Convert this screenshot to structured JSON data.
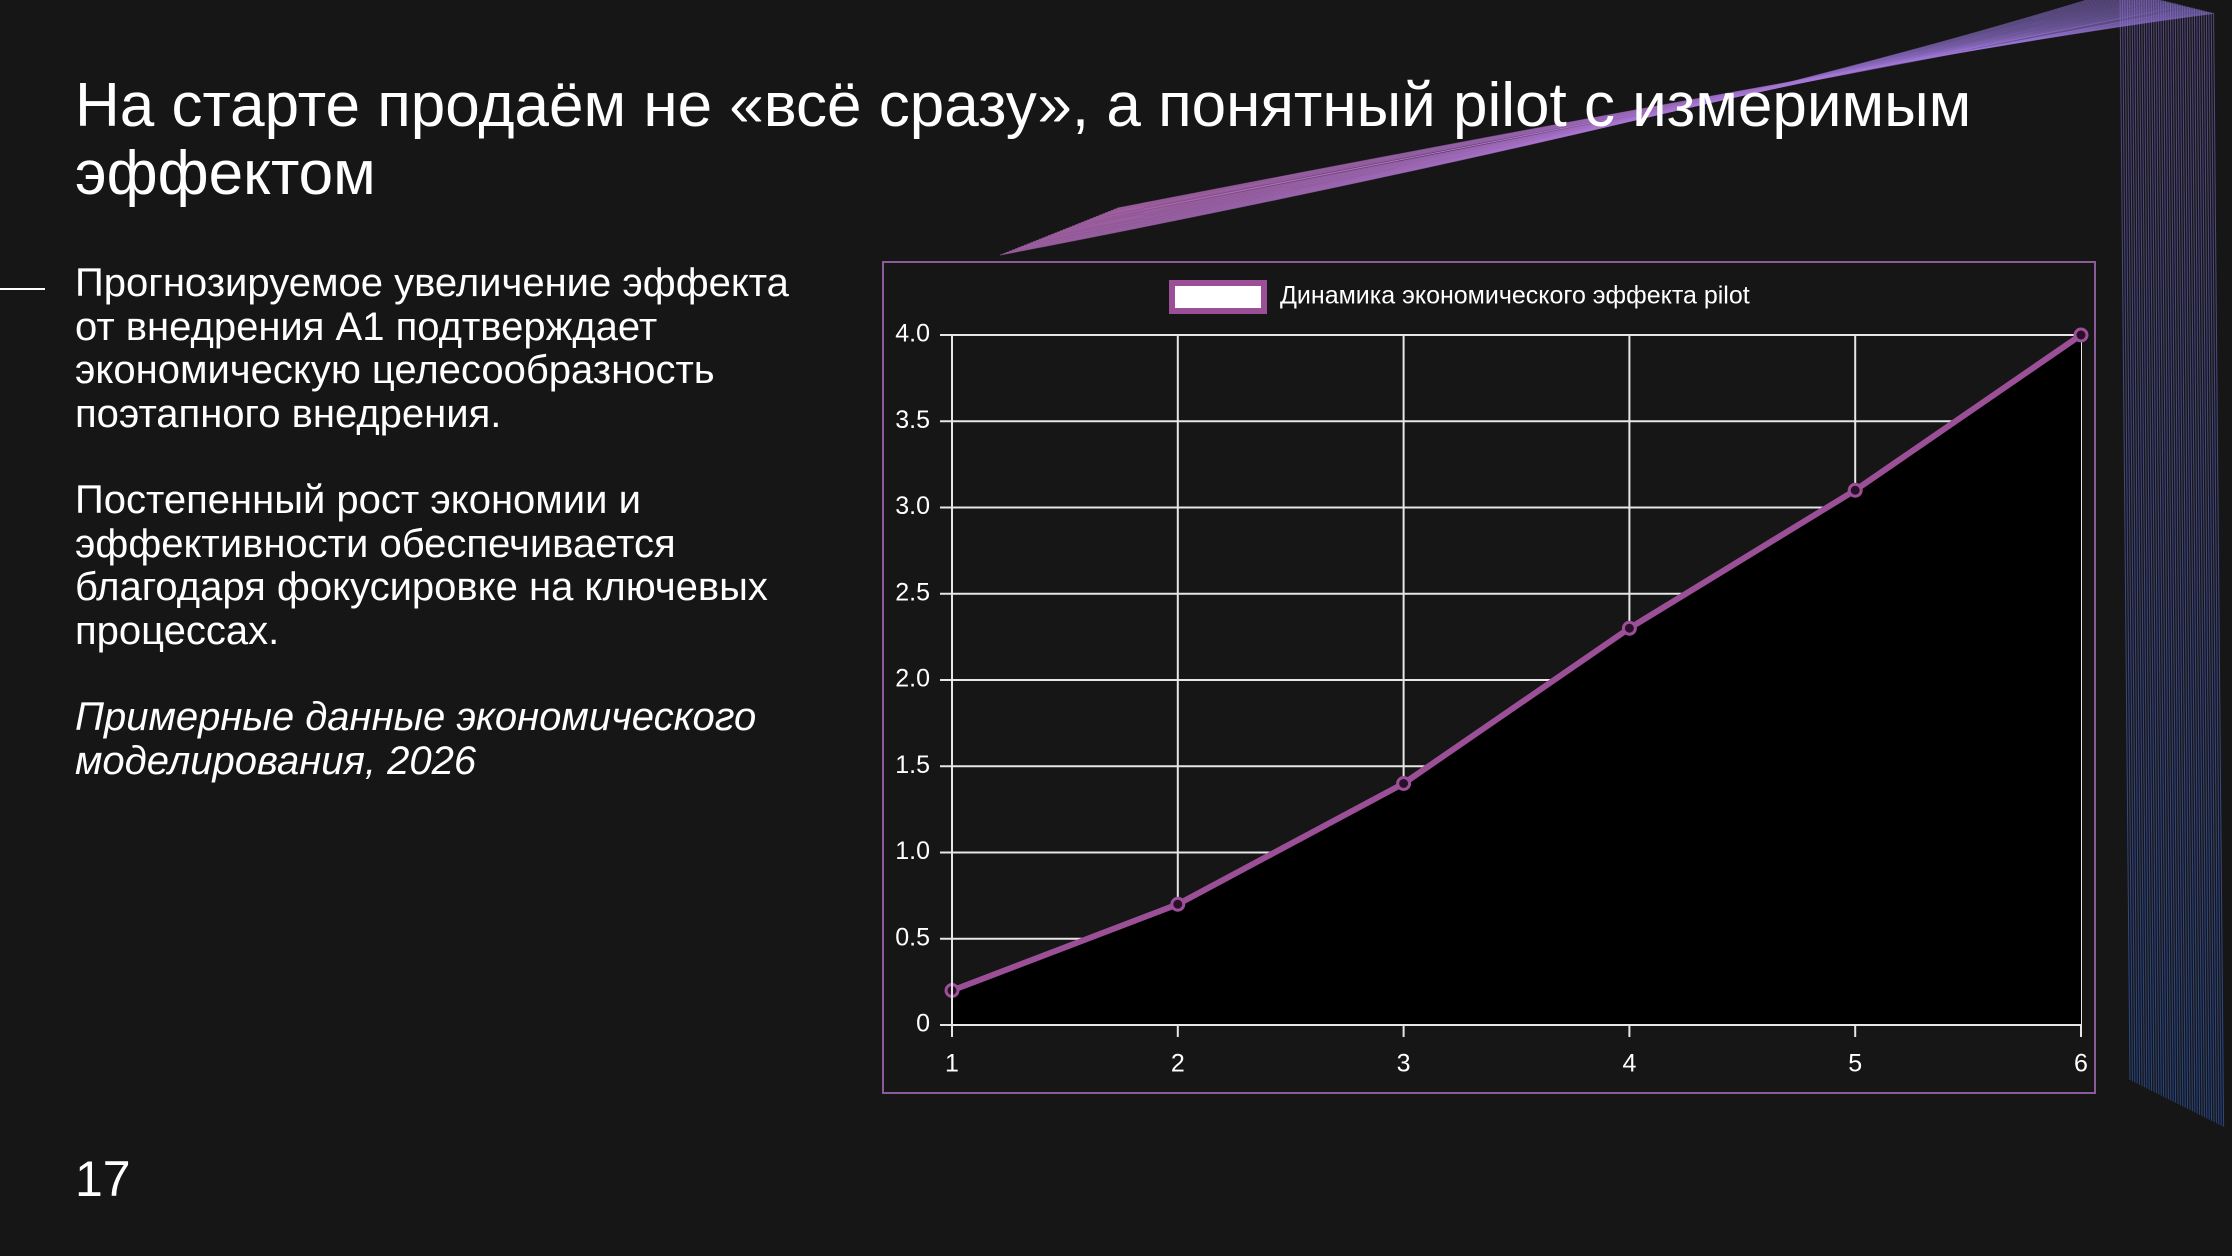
{
  "slide": {
    "title": "На старте продаём не «всё сразу», а понятный pilot с измеримым эффектом",
    "paragraphs": [
      "Прогнозируемое увеличение эффекта от внедрения А1 подтверждает экономическую целесообразность поэтапного внедрения.",
      "Постепенный рост экономии и эффективности обеспечивается благодаря фокусировке на ключевых процессах."
    ],
    "note": "Примерные данные экономического моделирования, 2026",
    "page_number": "17"
  },
  "chart_data": {
    "type": "line",
    "x": [
      1,
      2,
      3,
      4,
      5,
      6
    ],
    "series": [
      {
        "name": "Динамика экономического эффекта pilot",
        "color": "#9b4f96",
        "values": [
          0.2,
          0.7,
          1.4,
          2.3,
          3.1,
          4.0
        ]
      }
    ],
    "area_color": "#000000",
    "xlim": [
      1,
      6
    ],
    "xticks": [
      1,
      2,
      3,
      4,
      5,
      6
    ],
    "ylim": [
      0,
      4
    ],
    "yticks": [
      0,
      0.5,
      {
        "value": 1,
        "label": "1.0"
      },
      1.5,
      {
        "value": 2,
        "label": "2.0"
      },
      2.5,
      {
        "value": 3,
        "label": "3.0"
      },
      3.5,
      {
        "value": 4,
        "label": "4.0"
      }
    ],
    "grid": true,
    "legend": "top"
  }
}
